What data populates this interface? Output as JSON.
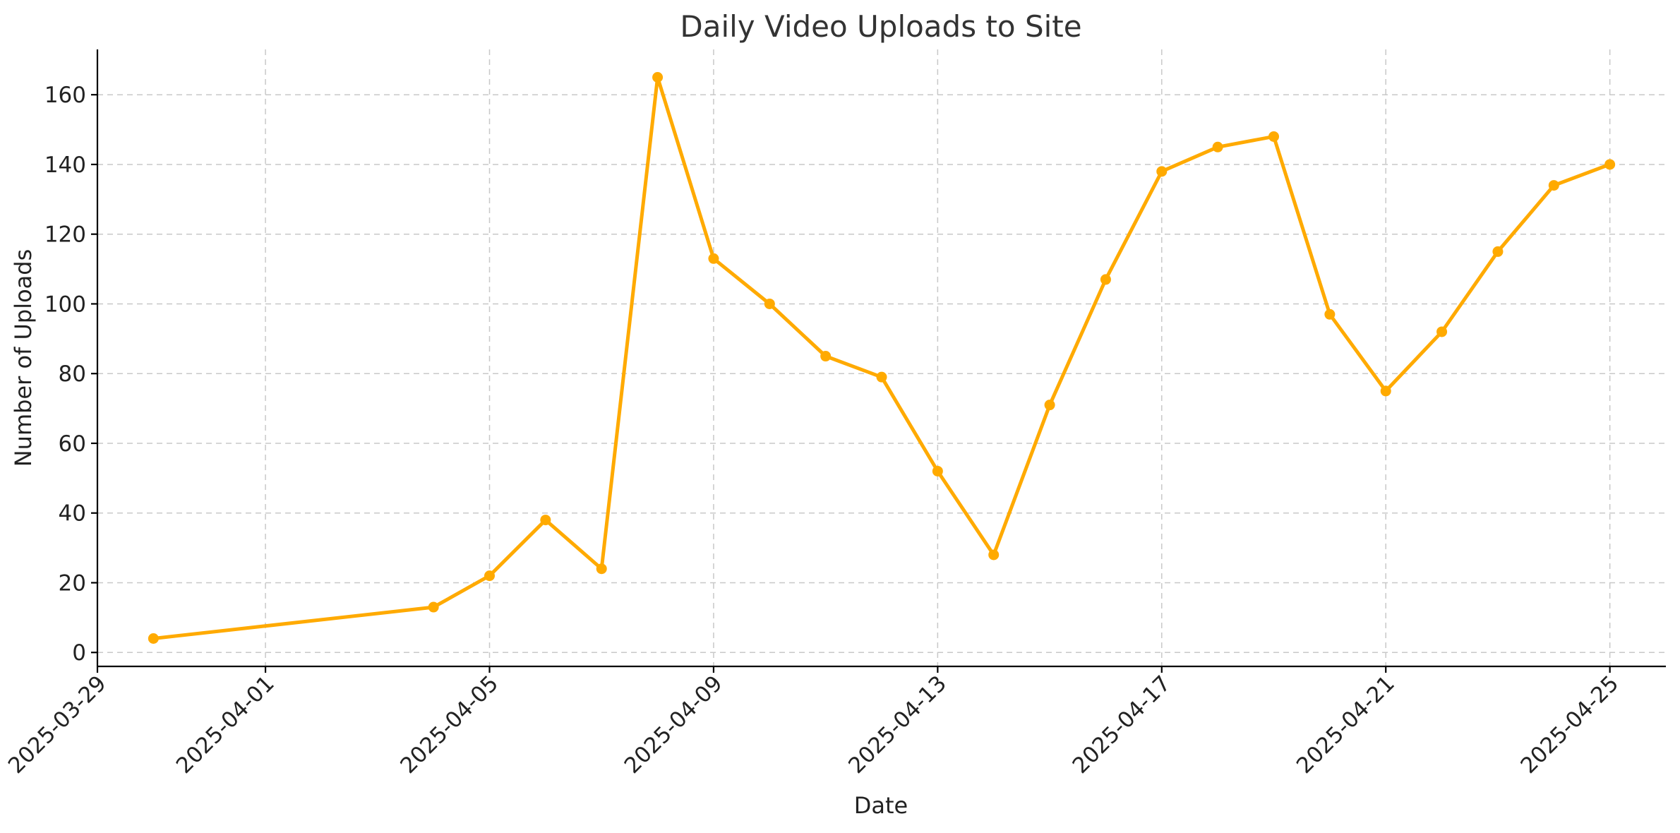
{
  "chart_data": {
    "type": "line",
    "title": "Daily Video Uploads to Site",
    "xlabel": "Date",
    "ylabel": "Number of Uploads",
    "x_type": "date",
    "xlim": [
      "2025-03-29",
      "2025-04-26"
    ],
    "ylim": [
      -4,
      173
    ],
    "x_ticks": [
      "2025-03-29",
      "2025-04-01",
      "2025-04-05",
      "2025-04-09",
      "2025-04-13",
      "2025-04-17",
      "2025-04-21",
      "2025-04-25"
    ],
    "y_ticks": [
      0,
      20,
      40,
      60,
      80,
      100,
      120,
      140,
      160
    ],
    "grid": true,
    "series": [
      {
        "color": "#FFAA00",
        "points": [
          {
            "x": "2025-03-30",
            "y": 4
          },
          {
            "x": "2025-04-04",
            "y": 13
          },
          {
            "x": "2025-04-05",
            "y": 22
          },
          {
            "x": "2025-04-06",
            "y": 38
          },
          {
            "x": "2025-04-07",
            "y": 24
          },
          {
            "x": "2025-04-08",
            "y": 165
          },
          {
            "x": "2025-04-09",
            "y": 113
          },
          {
            "x": "2025-04-10",
            "y": 100
          },
          {
            "x": "2025-04-11",
            "y": 85
          },
          {
            "x": "2025-04-12",
            "y": 79
          },
          {
            "x": "2025-04-13",
            "y": 52
          },
          {
            "x": "2025-04-14",
            "y": 28
          },
          {
            "x": "2025-04-15",
            "y": 71
          },
          {
            "x": "2025-04-16",
            "y": 107
          },
          {
            "x": "2025-04-17",
            "y": 138
          },
          {
            "x": "2025-04-18",
            "y": 145
          },
          {
            "x": "2025-04-19",
            "y": 148
          },
          {
            "x": "2025-04-20",
            "y": 97
          },
          {
            "x": "2025-04-21",
            "y": 75
          },
          {
            "x": "2025-04-22",
            "y": 92
          },
          {
            "x": "2025-04-23",
            "y": 115
          },
          {
            "x": "2025-04-24",
            "y": 134
          },
          {
            "x": "2025-04-25",
            "y": 140
          }
        ]
      }
    ]
  }
}
